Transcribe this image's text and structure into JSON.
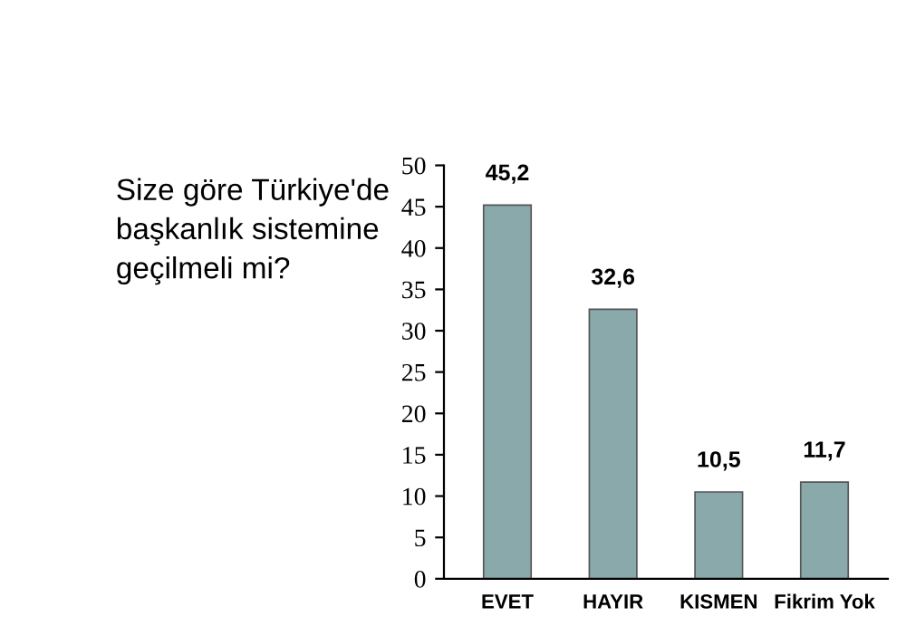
{
  "chart_data": {
    "type": "bar",
    "title": "Size göre Türkiye'de başkanlık sistemine geçilmeli mi?",
    "categories": [
      "EVET",
      "HAYIR",
      "KISMEN",
      "Fikrim Yok"
    ],
    "values": [
      45.2,
      32.6,
      10.5,
      11.7
    ],
    "value_labels": [
      "45,2",
      "32,6",
      "10,5",
      "11,7"
    ],
    "color": "#8aa9ab",
    "ylim": [
      0,
      50
    ],
    "yticks": [
      0,
      5,
      10,
      15,
      20,
      25,
      30,
      35,
      40,
      45,
      50
    ],
    "grid": false,
    "legend": false
  }
}
